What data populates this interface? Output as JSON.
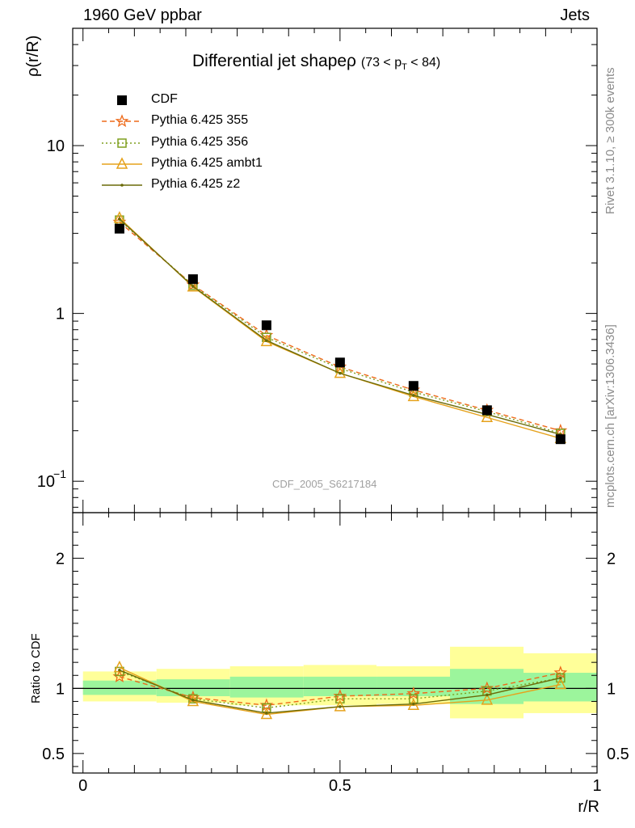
{
  "header": {
    "left": "1960 GeV ppbar",
    "right": "Jets"
  },
  "title": {
    "main": "Differential jet shapeρ",
    "range_prefix": "(73 < p",
    "range_sub": "T",
    "range_suffix": " < 84)"
  },
  "axes": {
    "ylabel": "ρ(r/R)",
    "xlabel": "r/R",
    "ratio_label": "Ratio to CDF",
    "upper_yticks": [
      "10",
      "1"
    ],
    "upper_ytick_exp": {
      "base": "10",
      "exp": "−1"
    },
    "ratio_yticks": [
      "2",
      "1",
      "0.5"
    ],
    "xticks": [
      "0",
      "0.5",
      "1"
    ]
  },
  "side_text": {
    "rivet": "Rivet 3.1.10, ≥ 300k events",
    "mcplots": "mcplots.cern.ch [arXiv:1306.3436]"
  },
  "watermark": "CDF_2005_S6217184",
  "legend": [
    "CDF",
    "Pythia 6.425 355",
    "Pythia 6.425 356",
    "Pythia 6.425 ambt1",
    "Pythia 6.425 z2"
  ],
  "colors": {
    "CDF": "#000000",
    "p355": "#ee6a1a",
    "p356": "#7f9f1f",
    "ambt1": "#e6a21c",
    "z2": "#6a6a08",
    "band_inner": "#9cf59c",
    "band_outer": "#ffff99"
  },
  "chart_data": {
    "type": "line",
    "x": [
      0.071,
      0.214,
      0.357,
      0.5,
      0.643,
      0.786,
      0.929
    ],
    "xlim": [
      -0.02,
      1.0
    ],
    "ylim": [
      0.065,
      50
    ],
    "yscale": "log",
    "ratio_ylim": [
      0.35,
      2.35
    ],
    "series": [
      {
        "name": "CDF",
        "values": [
          3.2,
          1.6,
          0.85,
          0.51,
          0.37,
          0.265,
          0.178
        ]
      },
      {
        "name": "Pythia 6.425 355",
        "values": [
          3.5,
          1.48,
          0.74,
          0.48,
          0.35,
          0.265,
          0.2
        ]
      },
      {
        "name": "Pythia 6.425 356",
        "values": [
          3.6,
          1.47,
          0.72,
          0.47,
          0.34,
          0.26,
          0.193
        ]
      },
      {
        "name": "Pythia 6.425 ambt1",
        "values": [
          3.7,
          1.44,
          0.68,
          0.44,
          0.32,
          0.24,
          0.18
        ]
      },
      {
        "name": "Pythia 6.425 z2",
        "values": [
          3.65,
          1.45,
          0.69,
          0.44,
          0.325,
          0.25,
          0.19
        ]
      }
    ],
    "ratio_series": [
      {
        "name": "Pythia 6.425 355",
        "values": [
          1.09,
          0.93,
          0.87,
          0.94,
          0.96,
          1.0,
          1.12
        ]
      },
      {
        "name": "Pythia 6.425 356",
        "values": [
          1.13,
          0.92,
          0.85,
          0.92,
          0.92,
          0.98,
          1.08
        ]
      },
      {
        "name": "Pythia 6.425 ambt1",
        "values": [
          1.16,
          0.9,
          0.8,
          0.86,
          0.87,
          0.91,
          1.03
        ]
      },
      {
        "name": "Pythia 6.425 z2",
        "values": [
          1.14,
          0.91,
          0.81,
          0.86,
          0.88,
          0.95,
          1.08
        ]
      }
    ],
    "bands": {
      "edges": [
        0.0,
        0.143,
        0.286,
        0.429,
        0.571,
        0.714,
        0.857,
        1.0
      ],
      "inner_lo": [
        0.95,
        0.94,
        0.93,
        0.94,
        0.94,
        0.88,
        0.9
      ],
      "inner_hi": [
        1.06,
        1.07,
        1.09,
        1.09,
        1.09,
        1.15,
        1.12
      ],
      "outer_lo": [
        0.9,
        0.89,
        0.87,
        0.87,
        0.88,
        0.77,
        0.81
      ],
      "outer_hi": [
        1.13,
        1.15,
        1.17,
        1.18,
        1.17,
        1.32,
        1.27
      ]
    }
  }
}
